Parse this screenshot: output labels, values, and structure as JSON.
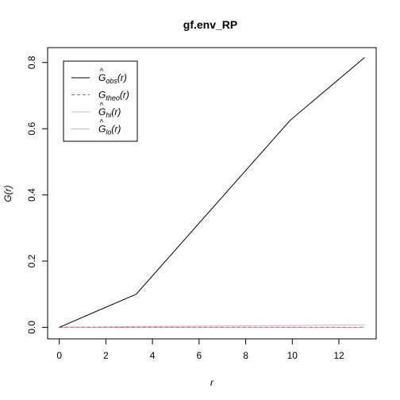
{
  "chart_data": {
    "type": "line",
    "title": "gf.env_RP",
    "xlabel": "r",
    "ylabel": "G(r)",
    "xlim": [
      -0.5,
      13.6
    ],
    "ylim": [
      -0.035,
      0.845
    ],
    "x_ticks": [
      0,
      2,
      4,
      6,
      8,
      10,
      12
    ],
    "x_tick_labels": [
      "0",
      "2",
      "4",
      "6",
      "8",
      "10",
      "12"
    ],
    "y_ticks": [
      0.0,
      0.2,
      0.4,
      0.6,
      0.8
    ],
    "y_tick_labels": [
      "0.0",
      "0.2",
      "0.4",
      "0.6",
      "0.8"
    ],
    "grid": false,
    "legend_position": "top-left",
    "series": [
      {
        "name": "obs",
        "label_base": "G",
        "label_sub": "obs",
        "hat": true,
        "color": "#000000",
        "dash": "solid",
        "x": [
          0,
          3.3,
          9.9,
          13.1
        ],
        "y": [
          0.0,
          0.1,
          0.625,
          0.815
        ]
      },
      {
        "name": "theo",
        "label_base": "G",
        "label_sub": "theo",
        "hat": false,
        "color": "#df536b",
        "dash": "dashed",
        "x": [
          0,
          13.1
        ],
        "y": [
          0.0,
          0.0
        ]
      },
      {
        "name": "hi",
        "label_base": "G",
        "label_sub": "hi",
        "hat": true,
        "color": "#bebebe",
        "dash": "solid",
        "x": [
          0,
          3.3,
          9.9,
          13.1
        ],
        "y": [
          0.0,
          0.0025,
          0.0055,
          0.0075
        ]
      },
      {
        "name": "lo",
        "label_base": "G",
        "label_sub": "lo",
        "hat": true,
        "color": "#bebebe",
        "dash": "solid",
        "x": [
          0,
          3.3,
          9.9,
          13.1
        ],
        "y": [
          0.0,
          0.0,
          0.0,
          0.0
        ]
      }
    ]
  }
}
